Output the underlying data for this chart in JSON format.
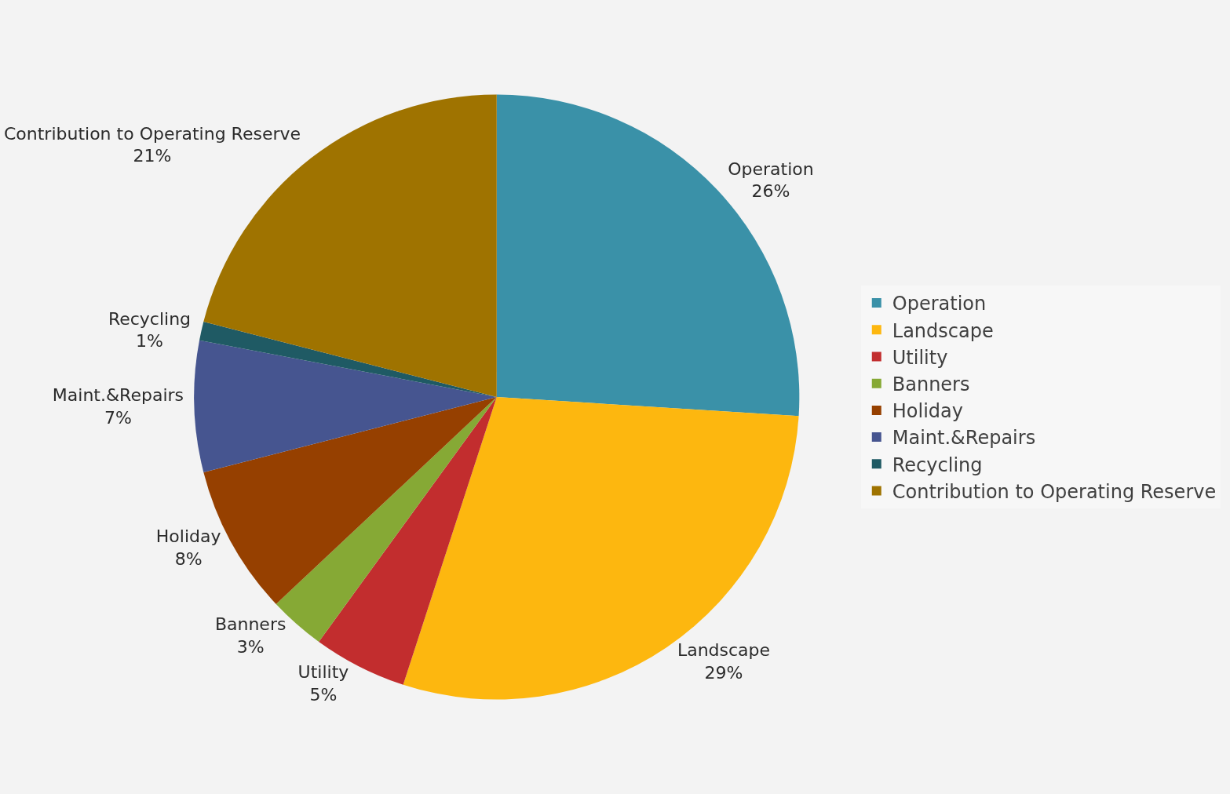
{
  "chart_data": {
    "type": "pie",
    "categories": [
      "Operation",
      "Landscape",
      "Utility",
      "Banners",
      "Holiday",
      "Maint.&Repairs",
      "Recycling",
      "Contribution to Operating Reserve"
    ],
    "values": [
      26,
      29,
      5,
      3,
      8,
      7,
      1,
      21
    ],
    "value_labels": [
      "26%",
      "29%",
      "5%",
      "3%",
      "8%",
      "7%",
      "1%",
      "21%"
    ],
    "colors": [
      "#3a91a8",
      "#fdb70f",
      "#c22d2e",
      "#86a935",
      "#964000",
      "#465590",
      "#1f5a64",
      "#9f7300"
    ],
    "legend": "right"
  }
}
